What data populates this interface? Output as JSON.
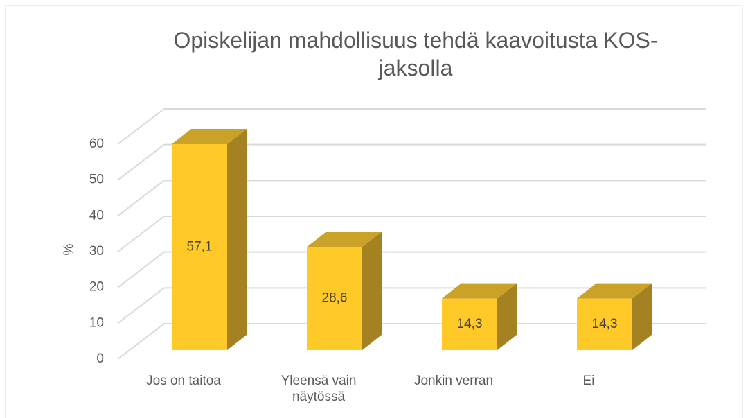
{
  "chart_data": {
    "type": "bar3d",
    "title": "Opiskelijan mahdollisuus tehdä kaavoitusta KOS-jaksolla",
    "y_label": "%",
    "categories": [
      "Jos on taitoa",
      "Yleensä vain näytössä",
      "Jonkin verran",
      "Ei"
    ],
    "values": [
      57.1,
      28.6,
      14.3,
      14.3
    ],
    "value_labels": [
      "57,1",
      "28,6",
      "14,3",
      "14,3"
    ],
    "color": "#ffc928",
    "ylim": [
      0,
      60
    ],
    "yticks": [
      0,
      10,
      20,
      30,
      40,
      50,
      60
    ],
    "grid": true
  }
}
